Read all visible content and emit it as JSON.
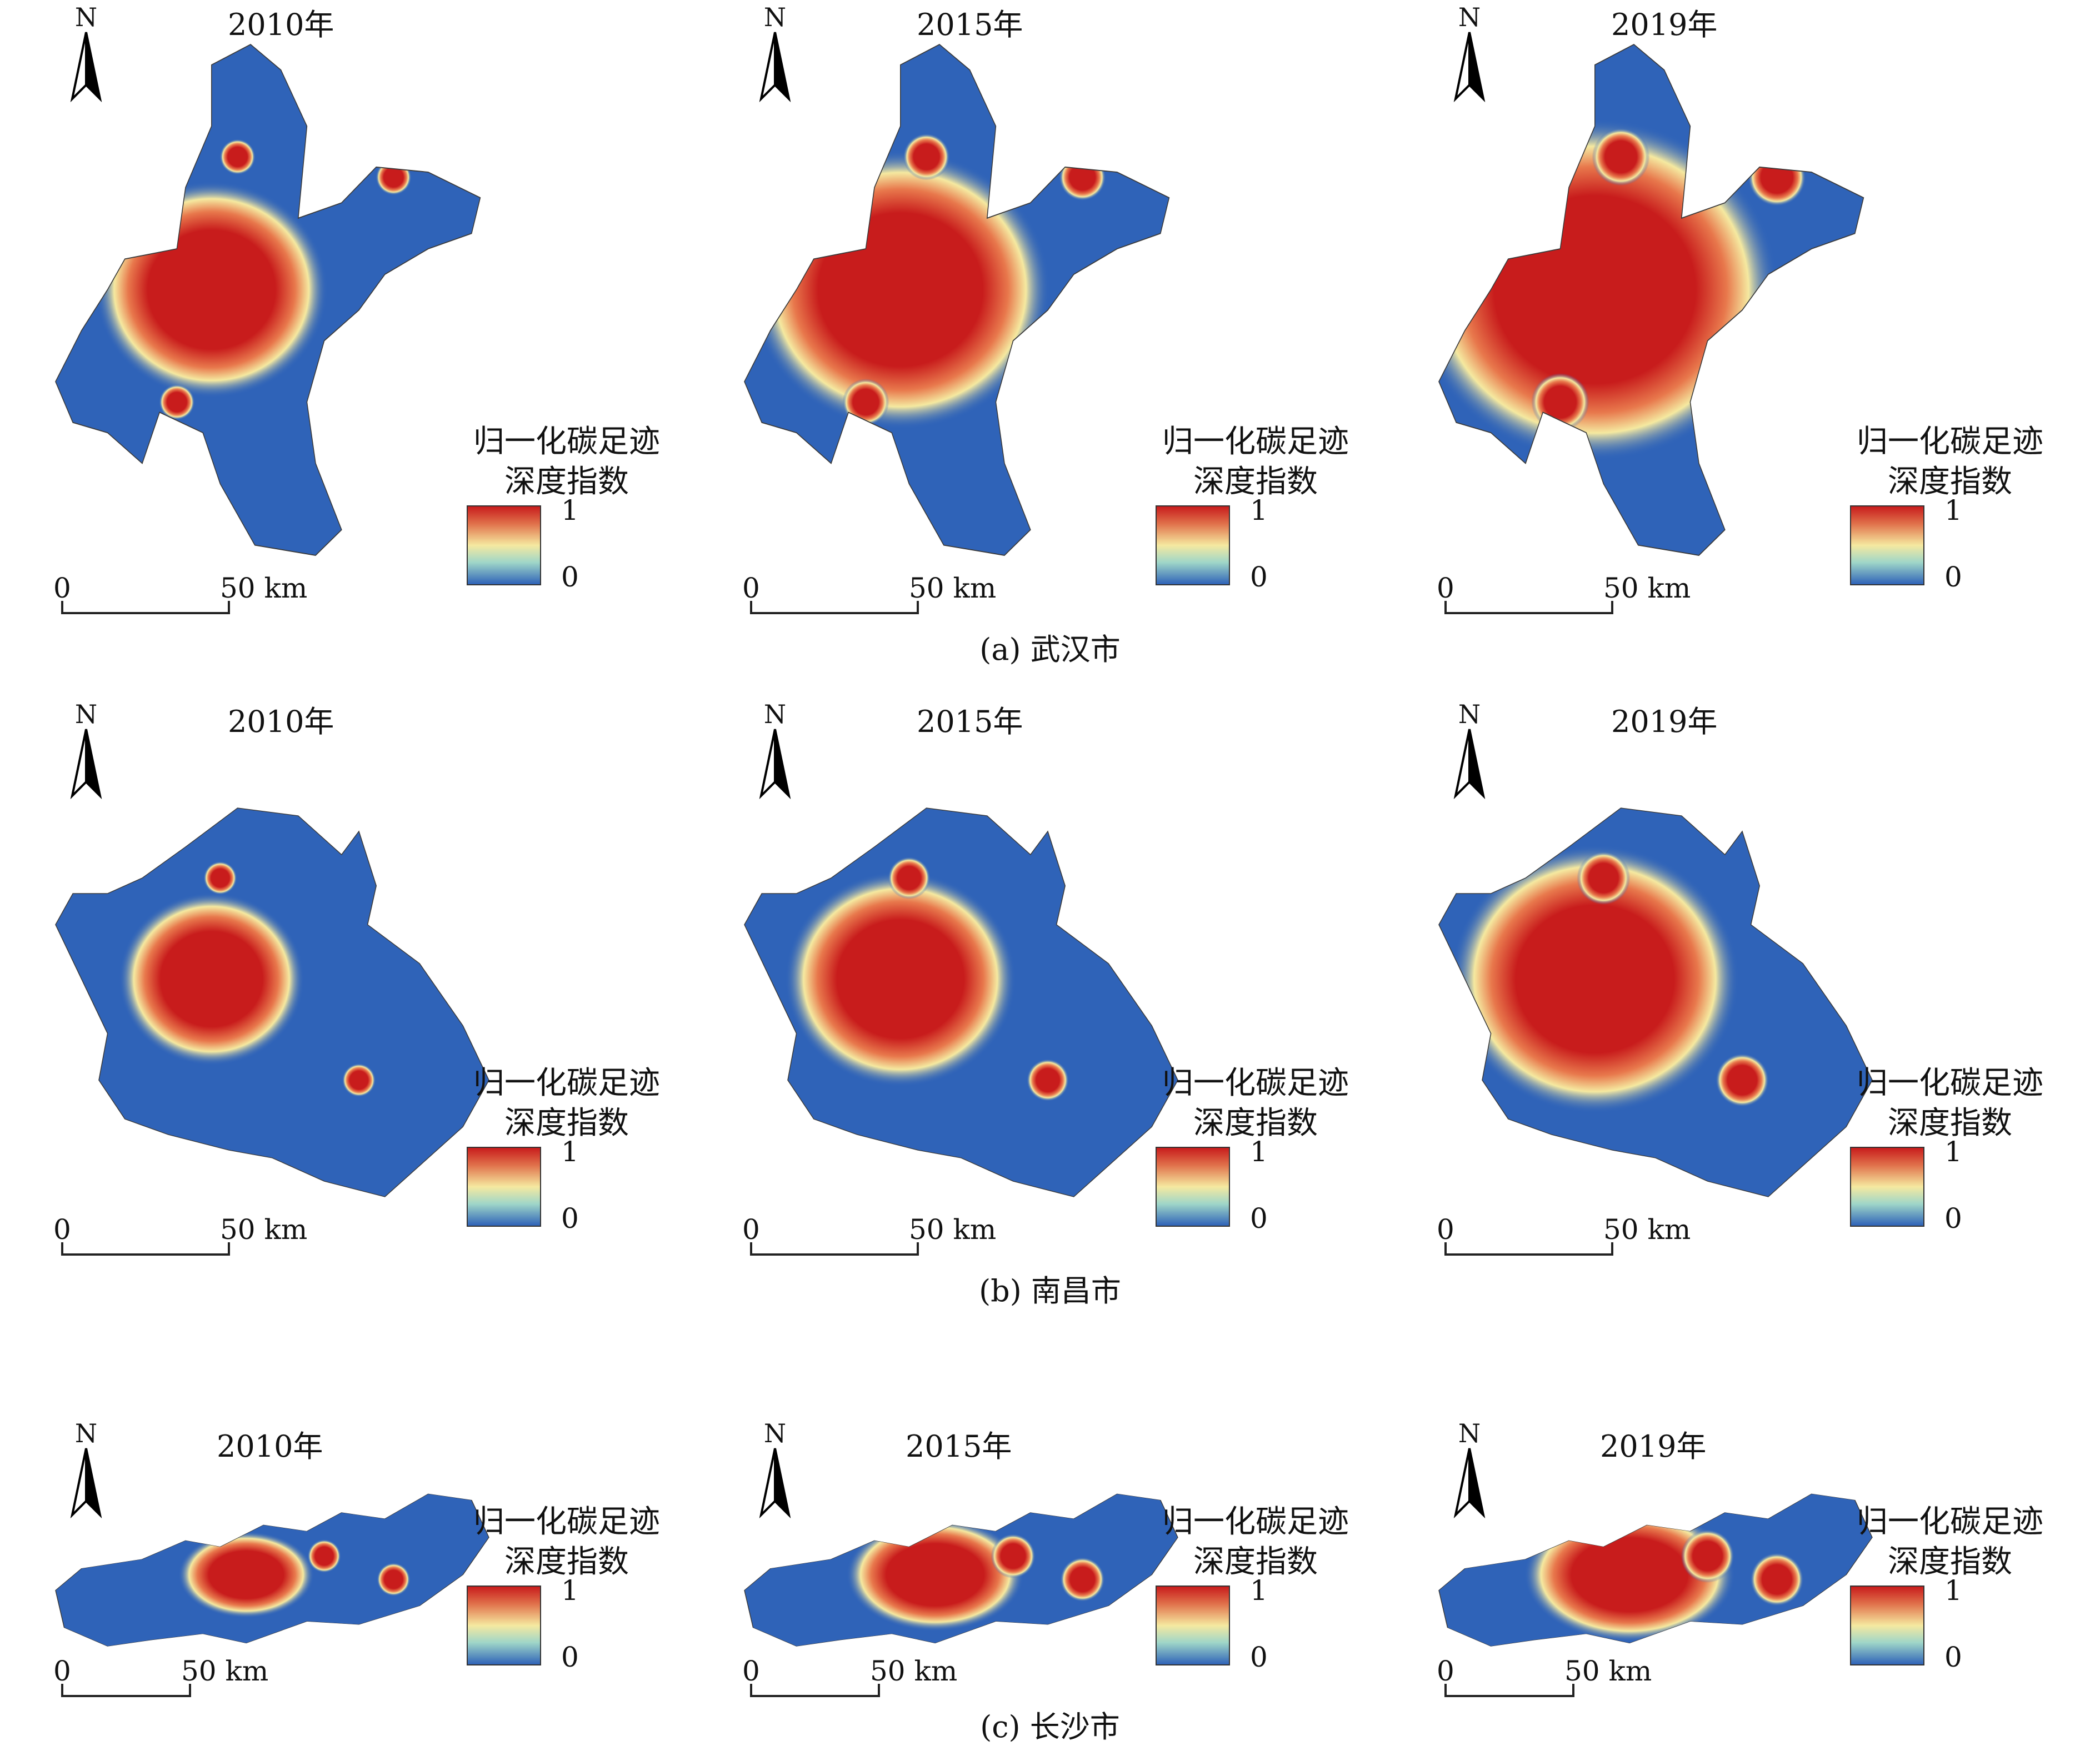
{
  "legend": {
    "title_line1": "归一化碳足迹",
    "title_line2": "深度指数",
    "max": "1",
    "min": "0"
  },
  "north_label": "N",
  "scale": {
    "zero": "0",
    "fifty": "50 km"
  },
  "colors": {
    "low": "#2f63b8",
    "mid": "#f5e9a0",
    "high": "#c81c1c"
  },
  "rows": [
    {
      "caption": "(a) 武汉市",
      "years": [
        "2010年",
        "2015年",
        "2019年"
      ],
      "hotspot_level": [
        0.35,
        0.6,
        0.85
      ]
    },
    {
      "caption": "(b) 南昌市",
      "years": [
        "2010年",
        "2015年",
        "2019年"
      ],
      "hotspot_level": [
        0.3,
        0.5,
        0.75
      ]
    },
    {
      "caption": "(c) 长沙市",
      "years": [
        "2010年",
        "2015年",
        "2019年"
      ],
      "hotspot_level": [
        0.3,
        0.55,
        0.75
      ]
    }
  ]
}
